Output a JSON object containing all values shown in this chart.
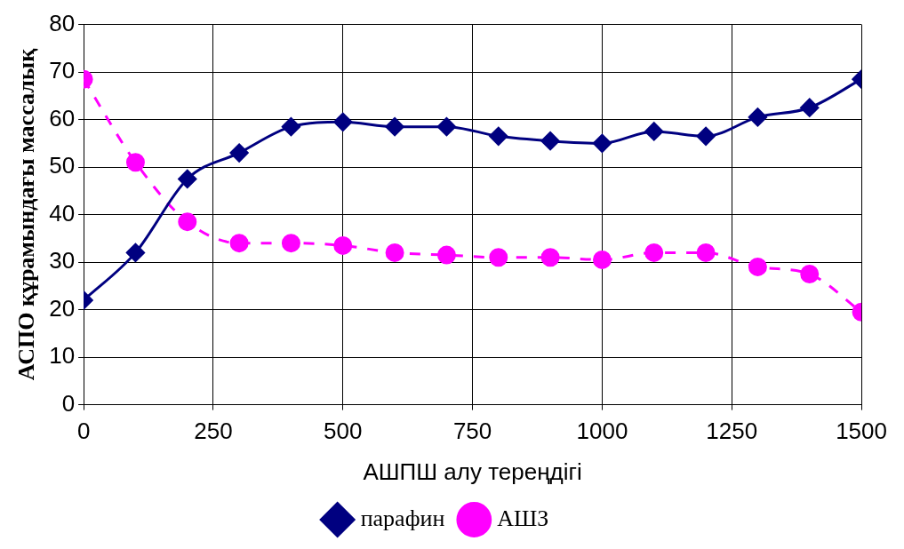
{
  "chart_data": {
    "type": "line",
    "xlabel": "АШПШ алу тереңдігі",
    "ylabel": "АСПО құрамындағы массалық",
    "x": [
      0,
      100,
      200,
      300,
      400,
      500,
      600,
      700,
      800,
      900,
      1000,
      1100,
      1200,
      1300,
      1400,
      1500
    ],
    "series": [
      {
        "name": "парафин",
        "color": "#000080",
        "marker": "diamond",
        "line_style": "solid",
        "values": [
          22,
          32,
          47.5,
          53,
          58.5,
          59.5,
          58.5,
          58.5,
          56.5,
          55.5,
          55,
          57.5,
          56.5,
          60.5,
          62.5,
          68.5
        ]
      },
      {
        "name": "АШЗ",
        "color": "#ff00ff",
        "marker": "circle",
        "line_style": "dashed",
        "values": [
          68.5,
          51,
          38.5,
          34,
          34,
          33.5,
          32,
          31.5,
          31,
          31,
          30.5,
          32,
          32,
          29,
          27.5,
          19.5
        ]
      }
    ],
    "xlim": [
      0,
      1500
    ],
    "xticks": [
      0,
      250,
      500,
      750,
      1000,
      1250,
      1500
    ],
    "ylim": [
      0,
      80
    ],
    "yticks": [
      0,
      10,
      20,
      30,
      40,
      50,
      60,
      70,
      80
    ],
    "grid": true,
    "legend": "bottom"
  }
}
